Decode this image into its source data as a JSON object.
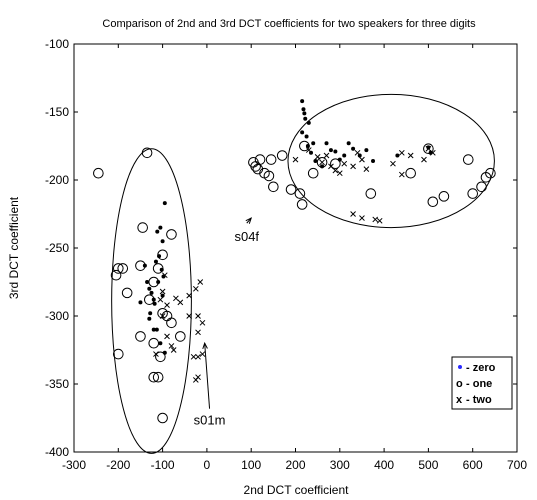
{
  "chart_data": {
    "type": "scatter",
    "title": "Comparison of 2nd and 3rd DCT coefficients for two speakers for three digits",
    "xlabel": "2nd DCT coefficient",
    "ylabel": "3rd DCT coefficient",
    "xlim": [
      -300,
      700
    ],
    "ylim": [
      -400,
      -100
    ],
    "xticks": [
      "-300",
      "-200",
      "-100",
      "0",
      "100",
      "200",
      "300",
      "400",
      "500",
      "600",
      "700"
    ],
    "yticks": [
      "-100",
      "-150",
      "-200",
      "-250",
      "-300",
      "-350",
      "-400"
    ],
    "grid": false,
    "legend_position": "bottom-right",
    "legend": [
      {
        "marker": "•",
        "label": "- zero"
      },
      {
        "marker": "o",
        "label": "- one"
      },
      {
        "marker": "x",
        "label": "- two"
      }
    ],
    "ellipse_labels": {
      "s01m": "s01m",
      "s04f": "s04f"
    },
    "series": [
      {
        "name": "zero",
        "marker": "dot",
        "x": [
          -95,
          -105,
          -112,
          -100,
          -108,
          -115,
          -102,
          -98,
          -110,
          -125,
          -118,
          -135,
          -140,
          -128,
          -150,
          -130,
          -113,
          -105,
          -95,
          -120,
          -100,
          -130,
          -120,
          215,
          218,
          220,
          222,
          215,
          225,
          230,
          228,
          235,
          240,
          245,
          260,
          270,
          280,
          290,
          310,
          320,
          330,
          345,
          360,
          375,
          300,
          500,
          505,
          430
        ],
        "y": [
          -217,
          -235,
          -238,
          -245,
          -256,
          -260,
          -266,
          -271,
          -275,
          -283,
          -291,
          -275,
          -263,
          -298,
          -290,
          -302,
          -310,
          -320,
          -327,
          -288,
          -285,
          -280,
          -310,
          -142,
          -148,
          -151,
          -155,
          -165,
          -168,
          -158,
          -175,
          -180,
          -173,
          -186,
          -190,
          -173,
          -178,
          -179,
          -182,
          -173,
          -177,
          -182,
          -178,
          -186,
          -185,
          -176,
          -180,
          -182
        ]
      },
      {
        "name": "one",
        "marker": "circle",
        "x": [
          -245,
          -135,
          -145,
          -80,
          -100,
          -110,
          -120,
          -150,
          -190,
          -200,
          -205,
          -180,
          -130,
          -100,
          -90,
          -80,
          -60,
          -120,
          -105,
          -150,
          -200,
          -120,
          -110,
          -100,
          105,
          110,
          115,
          120,
          130,
          140,
          145,
          150,
          170,
          190,
          210,
          215,
          240,
          260,
          290,
          370,
          460,
          500,
          510,
          535,
          590,
          600,
          620,
          630,
          640,
          220
        ],
        "y": [
          -195,
          -180,
          -235,
          -240,
          -255,
          -265,
          -275,
          -263,
          -265,
          -265,
          -270,
          -283,
          -288,
          -298,
          -300,
          -305,
          -315,
          -320,
          -330,
          -315,
          -328,
          -345,
          -345,
          -375,
          -187,
          -190,
          -192,
          -185,
          -195,
          -197,
          -185,
          -205,
          -182,
          -207,
          -210,
          -218,
          -195,
          -187,
          -188,
          -210,
          -195,
          -177,
          -216,
          -212,
          -185,
          -210,
          -205,
          -198,
          -195,
          -175
        ]
      },
      {
        "name": "two",
        "marker": "x",
        "x": [
          -95,
          -100,
          -105,
          -90,
          -70,
          -60,
          -40,
          -25,
          -15,
          -40,
          -20,
          -10,
          -20,
          -90,
          -80,
          -75,
          -100,
          -115,
          -10,
          -20,
          -20,
          -25,
          -30,
          200,
          230,
          250,
          260,
          270,
          280,
          290,
          300,
          310,
          330,
          340,
          350,
          360,
          420,
          440,
          460,
          490,
          500,
          510,
          440,
          390,
          350,
          380,
          330
        ],
        "y": [
          -270,
          -282,
          -288,
          -292,
          -287,
          -290,
          -285,
          -280,
          -275,
          -300,
          -300,
          -305,
          -312,
          -315,
          -322,
          -325,
          -300,
          -328,
          -328,
          -330,
          -345,
          -347,
          -330,
          -185,
          -178,
          -183,
          -187,
          -182,
          -190,
          -193,
          -195,
          -188,
          -190,
          -180,
          -185,
          -192,
          -188,
          -196,
          -182,
          -185,
          -177,
          -180,
          -180,
          -230,
          -228,
          -229,
          -225
        ]
      }
    ],
    "ellipses": [
      {
        "cx": -125,
        "cy": -289,
        "rx": 90,
        "ry": 112
      },
      {
        "cx": 416,
        "cy": -186,
        "rx": 233,
        "ry": 49
      }
    ],
    "arrows": [
      {
        "label_x": 6,
        "label_y": -377,
        "to_x": -5,
        "to_y": -320
      },
      {
        "label_x": 90,
        "label_y": -242,
        "to_x": 100,
        "to_y": -228
      }
    ]
  }
}
